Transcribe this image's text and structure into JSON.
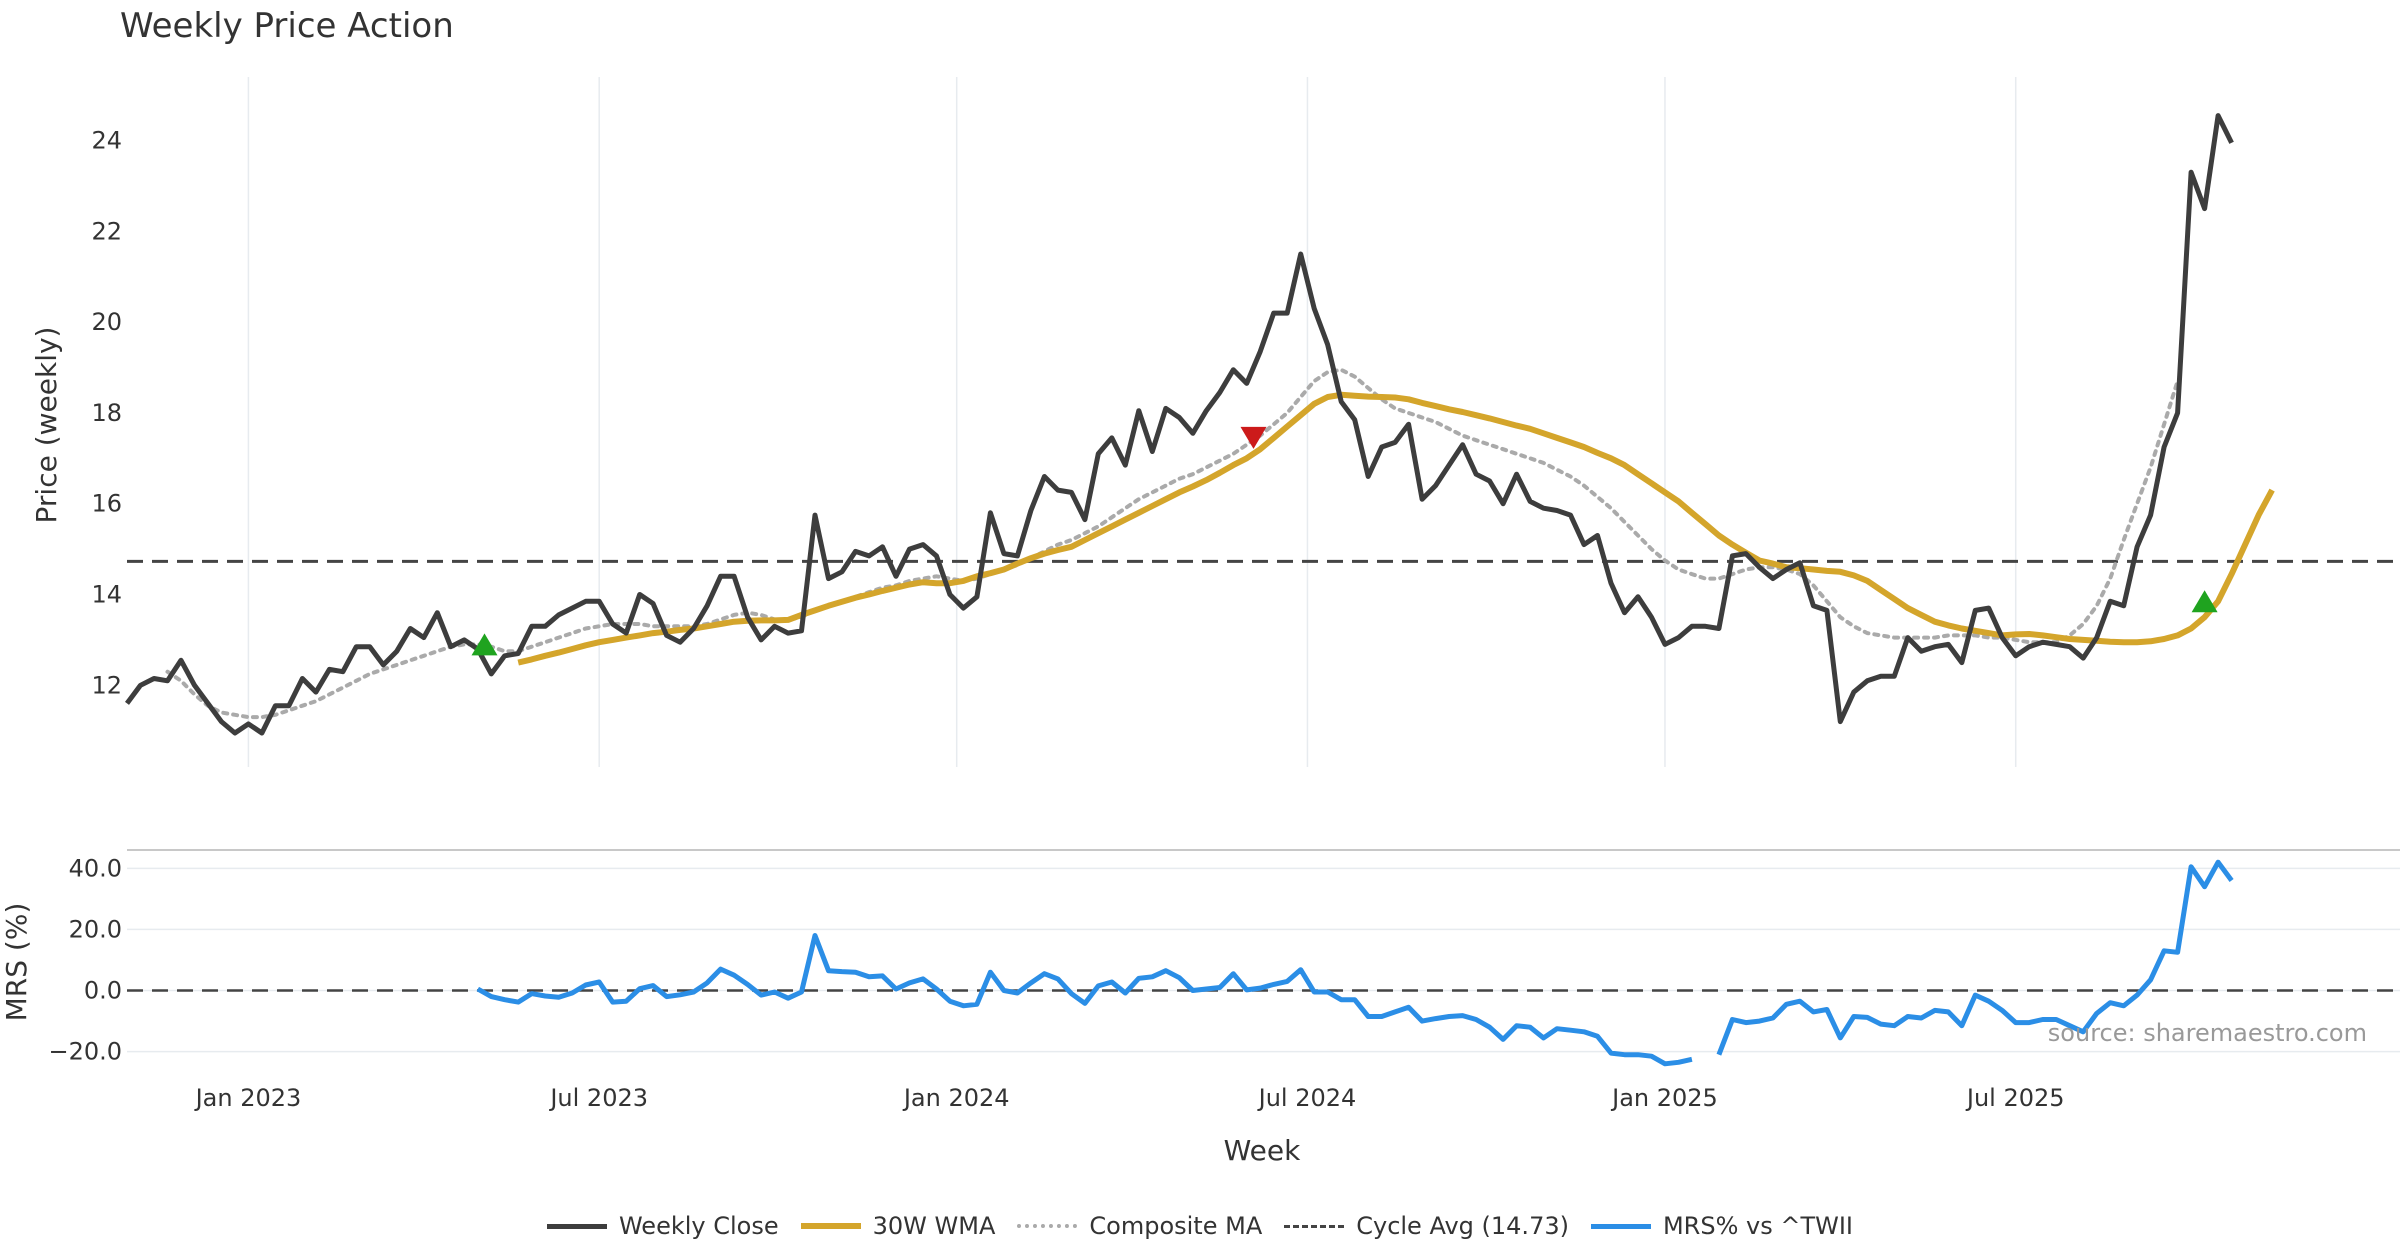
{
  "title": "Weekly Price Action",
  "source": "source: sharemaestro.com",
  "colors": {
    "close": "#3d3d3d",
    "wma": "#d4a52b",
    "composite": "#aaaaaa",
    "cycle": "#444444",
    "mrs": "#2b8ee6",
    "buy": "#1fa31f",
    "sell": "#cc1a1a",
    "grid": "#e7ebef"
  },
  "legend": {
    "close": "Weekly Close",
    "wma": "30W WMA",
    "composite": "Composite MA",
    "cycle": "Cycle Avg (14.73)",
    "mrs": "MRS% vs ^TWII"
  },
  "chart_data": {
    "type": "line",
    "x_axis": {
      "label": "Week",
      "range_weeks": [
        0,
        165
      ],
      "ticks": [
        {
          "week": 9,
          "label": "Jan 2023"
        },
        {
          "week": 35,
          "label": "Jul 2023"
        },
        {
          "week": 61.5,
          "label": "Jan 2024"
        },
        {
          "week": 87.5,
          "label": "Jul 2024"
        },
        {
          "week": 114,
          "label": "Jan 2025"
        },
        {
          "week": 140,
          "label": "Jul 2025"
        }
      ]
    },
    "price_panel": {
      "ylabel": "Price (weekly)",
      "ylim": [
        10.2,
        25.4
      ],
      "yticks": [
        "12",
        "14",
        "16",
        "18",
        "20",
        "22",
        "24"
      ],
      "cycle_avg": 14.73,
      "series": [
        {
          "name": "Weekly Close",
          "start_week": 0,
          "values": [
            11.6,
            12.0,
            12.15,
            12.1,
            12.55,
            12.0,
            11.6,
            11.2,
            10.95,
            11.15,
            10.95,
            11.55,
            11.55,
            12.15,
            11.85,
            12.35,
            12.3,
            12.85,
            12.85,
            12.45,
            12.75,
            13.25,
            13.05,
            13.6,
            12.85,
            13.0,
            12.8,
            12.25,
            12.65,
            12.7,
            13.3,
            13.3,
            13.55,
            13.7,
            13.85,
            13.85,
            13.35,
            13.15,
            14.0,
            13.8,
            13.1,
            12.95,
            13.25,
            13.75,
            14.4,
            14.4,
            13.5,
            13.0,
            13.3,
            13.15,
            13.2,
            15.75,
            14.35,
            14.5,
            14.95,
            14.85,
            15.05,
            14.4,
            15.0,
            15.1,
            14.85,
            14.0,
            13.7,
            13.95,
            15.8,
            14.9,
            14.85,
            15.85,
            16.6,
            16.3,
            16.25,
            15.65,
            17.1,
            17.45,
            16.85,
            18.05,
            17.15,
            18.1,
            17.9,
            17.55,
            18.05,
            18.45,
            18.95,
            18.65,
            19.35,
            20.2,
            20.2,
            21.5,
            20.3,
            19.5,
            18.25,
            17.85,
            16.6,
            17.25,
            17.35,
            17.75,
            16.1,
            16.4,
            16.85,
            17.3,
            16.65,
            16.5,
            16.0,
            16.65,
            16.05,
            15.9,
            15.85,
            15.75,
            15.1,
            15.3,
            14.25,
            13.6,
            13.95,
            13.5,
            12.9,
            13.05,
            13.3,
            13.3,
            13.25,
            14.85,
            14.9,
            14.6,
            14.35,
            14.55,
            14.7,
            13.75,
            13.65,
            11.2,
            11.85,
            12.1,
            12.2,
            12.2,
            13.05,
            12.75,
            12.85,
            12.9,
            12.5,
            13.65,
            13.7,
            13.05,
            12.65,
            12.85,
            12.95,
            12.9,
            12.85,
            12.6,
            13.05,
            13.85,
            13.75,
            15.05,
            15.75,
            17.25,
            18.0,
            23.3,
            22.5,
            24.55,
            23.95
          ]
        },
        {
          "name": "30W WMA",
          "start_week": 29,
          "values": [
            12.5,
            12.57,
            12.65,
            12.72,
            12.8,
            12.88,
            12.95,
            13.0,
            13.05,
            13.1,
            13.15,
            13.18,
            13.22,
            13.25,
            13.3,
            13.35,
            13.4,
            13.42,
            13.43,
            13.43,
            13.44,
            13.55,
            13.65,
            13.75,
            13.84,
            13.93,
            14.0,
            14.08,
            14.15,
            14.22,
            14.27,
            14.25,
            14.25,
            14.3,
            14.4,
            14.47,
            14.55,
            14.68,
            14.8,
            14.9,
            14.98,
            15.05,
            15.2,
            15.35,
            15.5,
            15.65,
            15.8,
            15.95,
            16.1,
            16.25,
            16.38,
            16.52,
            16.68,
            16.85,
            17.0,
            17.2,
            17.45,
            17.7,
            17.95,
            18.2,
            18.35,
            18.4,
            18.38,
            18.36,
            18.35,
            18.34,
            18.3,
            18.22,
            18.15,
            18.08,
            18.02,
            17.95,
            17.88,
            17.8,
            17.72,
            17.65,
            17.55,
            17.45,
            17.35,
            17.25,
            17.12,
            17.0,
            16.85,
            16.65,
            16.45,
            16.25,
            16.05,
            15.8,
            15.55,
            15.3,
            15.1,
            14.92,
            14.75,
            14.68,
            14.6,
            14.58,
            14.55,
            14.52,
            14.5,
            14.42,
            14.3,
            14.1,
            13.9,
            13.7,
            13.55,
            13.4,
            13.32,
            13.25,
            13.2,
            13.15,
            13.1,
            13.12,
            13.13,
            13.1,
            13.06,
            13.02,
            13.0,
            12.98,
            12.96,
            12.95,
            12.95,
            12.97,
            13.02,
            13.1,
            13.25,
            13.5,
            13.85,
            14.45,
            15.1,
            15.75,
            16.3
          ]
        },
        {
          "name": "Composite MA",
          "start_week": 3,
          "values": [
            12.3,
            12.1,
            11.8,
            11.55,
            11.4,
            11.35,
            11.3,
            11.3,
            11.35,
            11.45,
            11.55,
            11.65,
            11.8,
            11.95,
            12.1,
            12.25,
            12.35,
            12.45,
            12.55,
            12.65,
            12.75,
            12.85,
            12.9,
            12.9,
            12.85,
            12.75,
            12.75,
            12.85,
            12.95,
            13.05,
            13.15,
            13.25,
            13.3,
            13.35,
            13.35,
            13.35,
            13.3,
            13.3,
            13.3,
            13.3,
            13.35,
            13.45,
            13.55,
            13.6,
            13.55,
            13.45,
            13.45,
            13.5,
            13.65,
            13.75,
            13.85,
            13.95,
            14.05,
            14.15,
            14.2,
            14.3,
            14.35,
            14.4,
            14.35,
            14.3,
            14.35,
            14.45,
            14.55,
            14.65,
            14.8,
            14.95,
            15.1,
            15.2,
            15.35,
            15.5,
            15.7,
            15.9,
            16.1,
            16.25,
            16.4,
            16.55,
            16.65,
            16.8,
            16.95,
            17.1,
            17.3,
            17.5,
            17.75,
            18.0,
            18.35,
            18.7,
            18.9,
            18.95,
            18.8,
            18.55,
            18.3,
            18.1,
            18.0,
            17.9,
            17.8,
            17.65,
            17.5,
            17.4,
            17.3,
            17.2,
            17.1,
            17.0,
            16.9,
            16.75,
            16.6,
            16.4,
            16.15,
            15.9,
            15.6,
            15.3,
            15.0,
            14.75,
            14.55,
            14.45,
            14.35,
            14.35,
            14.45,
            14.55,
            14.6,
            14.6,
            14.55,
            14.45,
            14.2,
            13.85,
            13.5,
            13.3,
            13.15,
            13.1,
            13.05,
            13.05,
            13.05,
            13.05,
            13.1,
            13.1,
            13.1,
            13.05,
            13.05,
            13.0,
            12.95,
            12.95,
            12.95,
            13.1,
            13.35,
            13.75,
            14.35,
            15.2,
            16.0,
            16.8,
            17.75,
            18.7
          ]
        }
      ],
      "signals": [
        {
          "type": "buy",
          "week": 26.5,
          "value": 12.9
        },
        {
          "type": "sell",
          "week": 83.5,
          "value": 17.45
        },
        {
          "type": "buy",
          "week": 154,
          "value": 13.85
        }
      ]
    },
    "mrs_panel": {
      "ylabel": "MRS (%)",
      "ylim": [
        -27,
        46
      ],
      "yticks": [
        "40.0",
        "20.0",
        "0.0",
        "−20.0"
      ],
      "zero_line": 0,
      "series": [
        {
          "name": "MRS% vs ^TWII",
          "start_week": 26,
          "values": [
            0.5,
            -2.0,
            -3.0,
            -3.8,
            -1.0,
            -1.8,
            -2.2,
            -0.8,
            1.8,
            2.8,
            -3.8,
            -3.5,
            0.6,
            1.6,
            -2.0,
            -1.4,
            -0.5,
            2.5,
            7.0,
            5.0,
            2.0,
            -1.5,
            -0.5,
            -2.5,
            -0.5,
            18.0,
            6.5,
            6.2,
            6.0,
            4.5,
            4.8,
            0.5,
            2.5,
            3.8,
            0.5,
            -3.5,
            -5.0,
            -4.5,
            6.0,
            0.0,
            -0.8,
            2.5,
            5.5,
            3.8,
            -1.0,
            -4.2,
            1.5,
            2.8,
            -0.8,
            4.0,
            4.5,
            6.5,
            4.2,
            0.0,
            0.5,
            1.0,
            5.5,
            0.2,
            0.8,
            2.0,
            3.0,
            6.8,
            -0.5,
            -0.5,
            -3.0,
            -3.0,
            -8.5,
            -8.5,
            -7.0,
            -5.5,
            -10.0,
            -9.2,
            -8.5,
            -8.2,
            -9.5,
            -12.0,
            -16.0,
            -11.5,
            -12.0,
            -15.5,
            -12.5,
            -13.0,
            -13.5,
            -15.0,
            -20.5,
            -21.0,
            -21.0,
            -21.5,
            -24.0,
            -23.5,
            -22.5,
            null,
            -21.0,
            -9.5,
            -10.5,
            -10.0,
            -9.0,
            -4.5,
            -3.5,
            -7.0,
            -6.2,
            -15.5,
            -8.5,
            -8.8,
            -11.0,
            -11.5,
            -8.5,
            -9.0,
            -6.5,
            -7.0,
            -11.5,
            -1.5,
            -3.5,
            -6.5,
            -10.5,
            -10.5,
            -9.5,
            -9.5,
            -11.5,
            -13.5,
            -7.5,
            -4.0,
            -5.0,
            -1.5,
            3.5,
            13.0,
            12.5,
            40.5,
            34.0,
            42.0,
            36.0
          ]
        }
      ]
    }
  }
}
